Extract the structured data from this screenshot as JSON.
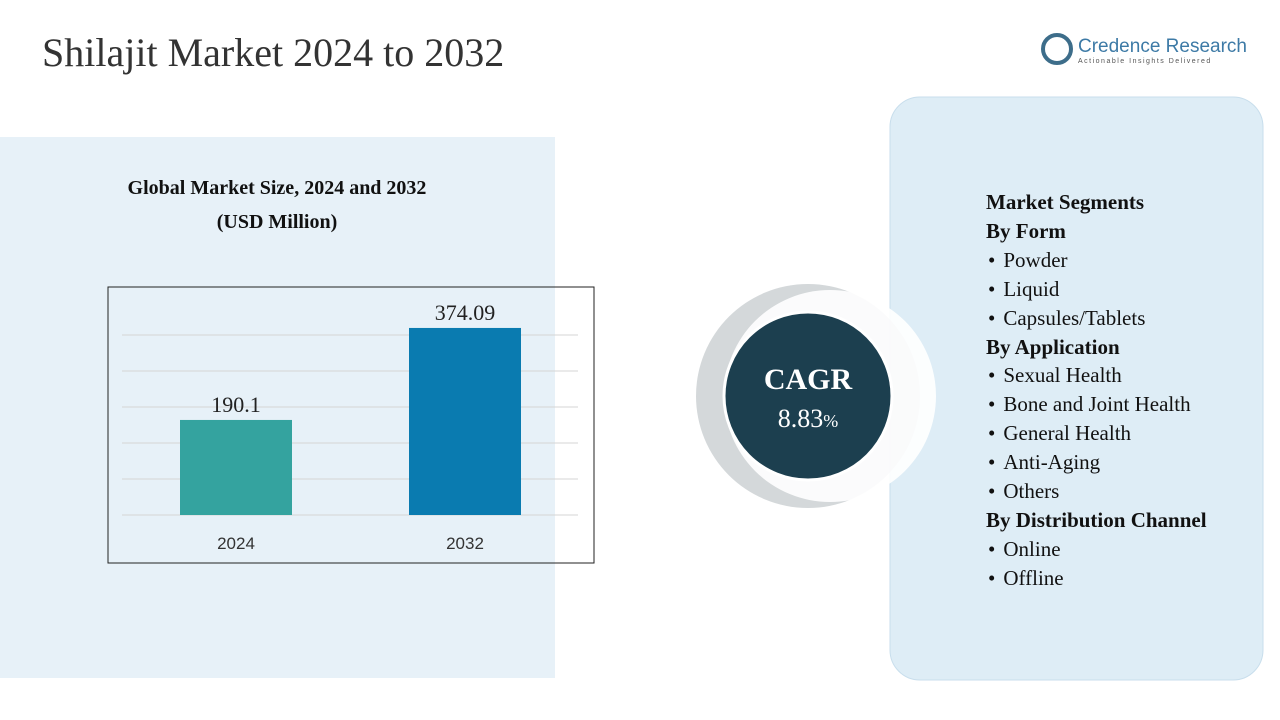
{
  "header": {
    "title": "Shilajit Market 2024 to 2032"
  },
  "logo": {
    "name": "Credence Research",
    "tagline": "Actionable Insights Delivered"
  },
  "chart_data": {
    "type": "bar",
    "title": "Global Market Size, 2024 and 2032",
    "subtitle": "(USD Million)",
    "categories": [
      "2024",
      "2032"
    ],
    "values": [
      190.1,
      374.09
    ],
    "colors": [
      "#34a39f",
      "#0a7bb0"
    ],
    "ylim": [
      0,
      450
    ]
  },
  "cagr": {
    "label": "CAGR",
    "value": "8.83",
    "unit": "%"
  },
  "segments": {
    "title": "Market Segments",
    "groups": [
      {
        "name": "By Form",
        "items": [
          "Powder",
          "Liquid",
          "Capsules/Tablets"
        ]
      },
      {
        "name": "By Application",
        "items": [
          "Sexual Health",
          "Bone and Joint Health",
          "General Health",
          "Anti-Aging",
          "Others"
        ]
      },
      {
        "name": "By Distribution Channel",
        "items": [
          "Online",
          "Offline"
        ]
      }
    ]
  }
}
